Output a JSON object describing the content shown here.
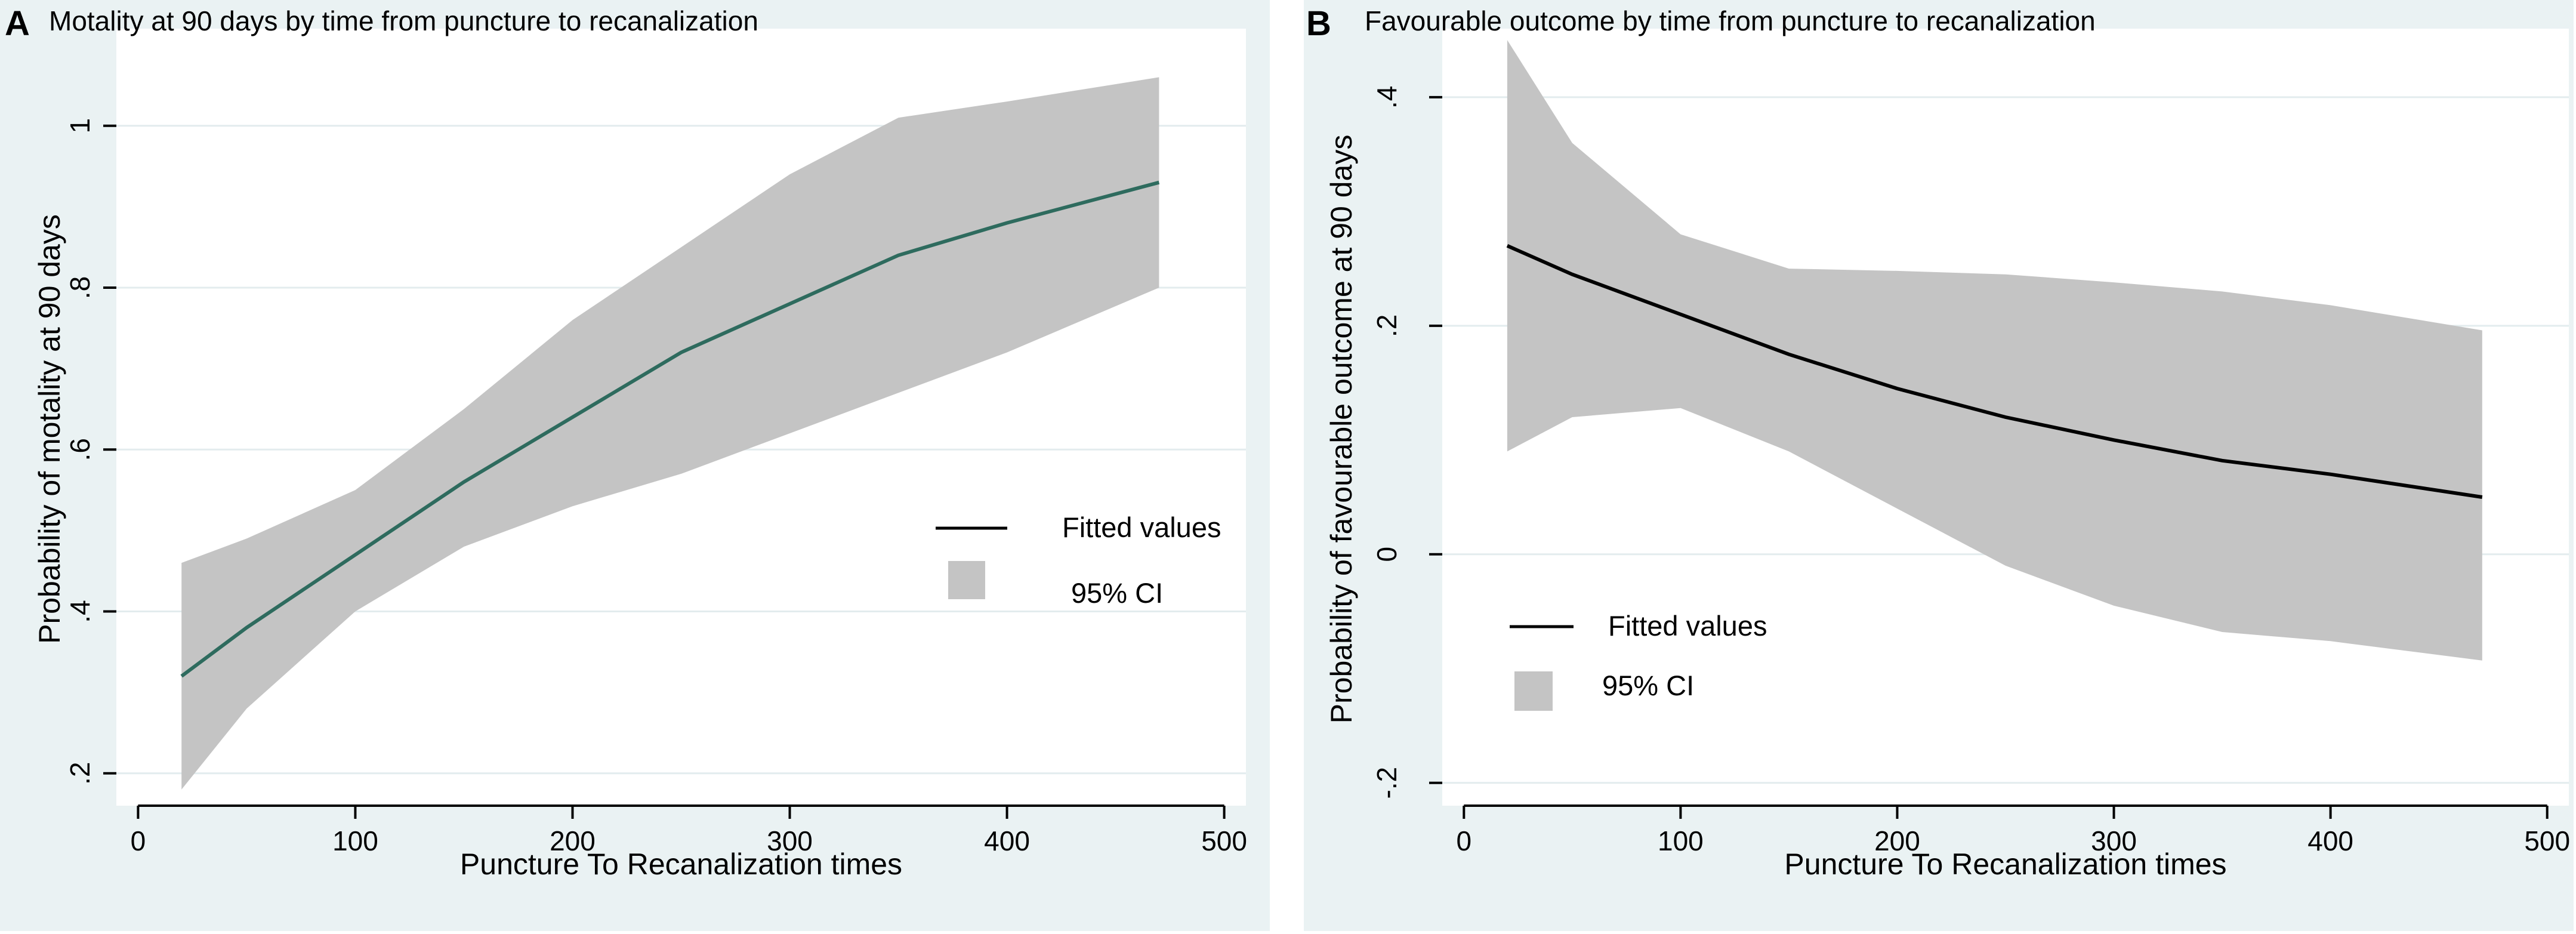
{
  "chart_data": [
    {
      "panel": "A",
      "type": "line",
      "title": "Motality at 90 days by time from puncture to recanalization",
      "xlabel": "Puncture To Recanalization times",
      "ylabel": "Probability of motality at 90 days",
      "xlim": [
        -10,
        510
      ],
      "ylim": [
        0.16,
        1.12
      ],
      "xticks": [
        0,
        100,
        200,
        300,
        400,
        500
      ],
      "xtick_labels": [
        "0",
        "100",
        "200",
        "300",
        "400",
        "500"
      ],
      "yticks": [
        0.2,
        0.4,
        0.6,
        0.8,
        1.0
      ],
      "ytick_labels": [
        ".2",
        ".4",
        ".6",
        ".8",
        "1"
      ],
      "line_color": "#2e6b5e",
      "band_color": "#c4c4c4",
      "series": [
        {
          "name": "Fitted values",
          "x": [
            20,
            50,
            100,
            150,
            200,
            250,
            300,
            350,
            400,
            470
          ],
          "y": [
            0.32,
            0.38,
            0.47,
            0.56,
            0.64,
            0.72,
            0.78,
            0.84,
            0.88,
            0.93
          ]
        },
        {
          "name": "95% CI",
          "x": [
            20,
            50,
            100,
            150,
            200,
            250,
            300,
            350,
            400,
            470
          ],
          "lower": [
            0.18,
            0.28,
            0.4,
            0.48,
            0.53,
            0.57,
            0.62,
            0.67,
            0.72,
            0.8
          ],
          "upper": [
            0.46,
            0.49,
            0.55,
            0.65,
            0.76,
            0.85,
            0.94,
            1.01,
            1.03,
            1.06
          ]
        }
      ],
      "legend": [
        "Fitted values",
        "95% CI"
      ]
    },
    {
      "panel": "B",
      "type": "line",
      "title": "Favourable outcome by time from puncture to recanalization",
      "xlabel": "Puncture To Recanalization times",
      "ylabel": "Probability of favourable outcome at 90 days",
      "xlim": [
        -10,
        510
      ],
      "ylim": [
        -0.22,
        0.46
      ],
      "xticks": [
        0,
        100,
        200,
        300,
        400,
        500
      ],
      "xtick_labels": [
        "0",
        "100",
        "200",
        "300",
        "400",
        "500"
      ],
      "yticks": [
        -0.2,
        0,
        0.2,
        0.4
      ],
      "ytick_labels": [
        "-.2",
        "0",
        ".2",
        ".4"
      ],
      "line_color": "#000000",
      "band_color": "#c4c4c4",
      "series": [
        {
          "name": "Fitted values",
          "x": [
            20,
            50,
            100,
            150,
            200,
            250,
            300,
            350,
            400,
            470
          ],
          "y": [
            0.27,
            0.245,
            0.21,
            0.175,
            0.145,
            0.12,
            0.1,
            0.082,
            0.07,
            0.05
          ]
        },
        {
          "name": "95% CI",
          "x": [
            20,
            50,
            100,
            150,
            200,
            250,
            300,
            350,
            400,
            470
          ],
          "lower": [
            0.09,
            0.12,
            0.128,
            0.09,
            0.04,
            -0.01,
            -0.045,
            -0.068,
            -0.076,
            -0.093
          ],
          "upper": [
            0.45,
            0.36,
            0.28,
            0.25,
            0.248,
            0.245,
            0.238,
            0.23,
            0.218,
            0.196
          ]
        }
      ],
      "legend": [
        "Fitted values",
        "95% CI"
      ]
    }
  ]
}
